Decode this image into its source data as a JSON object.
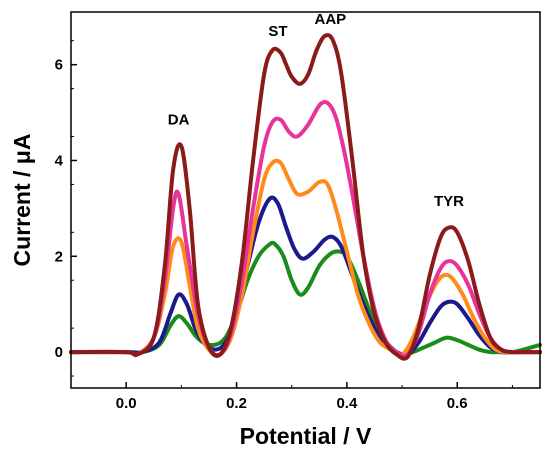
{
  "chart_data": {
    "type": "line",
    "title": "",
    "xlabel": "Potential / V",
    "ylabel": "Current / μA",
    "xlim": [
      -0.1,
      0.75
    ],
    "ylim": [
      -0.75,
      7.1
    ],
    "xticks": [
      "0.0",
      "0.2",
      "0.4",
      "0.6"
    ],
    "xtick_values": [
      0.0,
      0.2,
      0.4,
      0.6
    ],
    "yticks": [
      "0",
      "2",
      "4",
      "6"
    ],
    "ytick_values": [
      0,
      2,
      4,
      6
    ],
    "grid": false,
    "legend": "none",
    "annotations": [
      {
        "text": "DA",
        "x": 0.095,
        "y": 4.75
      },
      {
        "text": "ST",
        "x": 0.275,
        "y": 6.6
      },
      {
        "text": "AAP",
        "x": 0.37,
        "y": 6.85
      },
      {
        "text": "TYR",
        "x": 0.585,
        "y": 3.05
      }
    ],
    "series": [
      {
        "color": "#8B1A1A",
        "x": [
          -0.1,
          0.0,
          0.02,
          0.05,
          0.07,
          0.085,
          0.1,
          0.115,
          0.13,
          0.15,
          0.17,
          0.19,
          0.21,
          0.23,
          0.25,
          0.265,
          0.28,
          0.29,
          0.3,
          0.315,
          0.33,
          0.345,
          0.36,
          0.375,
          0.39,
          0.41,
          0.43,
          0.45,
          0.47,
          0.49,
          0.51,
          0.53,
          0.55,
          0.57,
          0.585,
          0.6,
          0.62,
          0.64,
          0.66,
          0.68,
          0.7,
          0.72,
          0.75
        ],
        "y": [
          0.0,
          0.0,
          -0.05,
          0.3,
          1.8,
          3.8,
          4.3,
          3.0,
          1.0,
          0.1,
          -0.05,
          0.5,
          1.9,
          4.0,
          5.8,
          6.3,
          6.25,
          6.0,
          5.75,
          5.6,
          5.8,
          6.3,
          6.6,
          6.5,
          5.8,
          4.0,
          2.0,
          0.8,
          0.2,
          -0.05,
          -0.1,
          0.5,
          1.6,
          2.4,
          2.6,
          2.5,
          1.9,
          1.0,
          0.3,
          0.05,
          0.0,
          0.0,
          0.0
        ]
      },
      {
        "color": "#E8339A",
        "x": [
          -0.1,
          0.0,
          0.02,
          0.05,
          0.07,
          0.085,
          0.095,
          0.11,
          0.13,
          0.15,
          0.17,
          0.19,
          0.21,
          0.23,
          0.25,
          0.265,
          0.28,
          0.295,
          0.31,
          0.33,
          0.35,
          0.365,
          0.38,
          0.395,
          0.41,
          0.43,
          0.45,
          0.47,
          0.49,
          0.51,
          0.53,
          0.55,
          0.57,
          0.585,
          0.6,
          0.62,
          0.64,
          0.66,
          0.68,
          0.7,
          0.72,
          0.75
        ],
        "y": [
          0.0,
          0.0,
          -0.05,
          0.3,
          1.5,
          3.0,
          3.3,
          2.2,
          0.8,
          0.1,
          -0.05,
          0.4,
          1.5,
          3.0,
          4.3,
          4.8,
          4.85,
          4.6,
          4.5,
          4.75,
          5.15,
          5.2,
          4.9,
          4.2,
          3.3,
          2.0,
          0.9,
          0.25,
          0.0,
          -0.05,
          0.4,
          1.2,
          1.75,
          1.9,
          1.8,
          1.4,
          0.8,
          0.3,
          0.05,
          0.0,
          0.0,
          0.0
        ]
      },
      {
        "color": "#FF8C1A",
        "x": [
          -0.1,
          0.0,
          0.02,
          0.05,
          0.07,
          0.085,
          0.1,
          0.115,
          0.13,
          0.15,
          0.17,
          0.19,
          0.21,
          0.23,
          0.25,
          0.265,
          0.28,
          0.295,
          0.31,
          0.33,
          0.35,
          0.365,
          0.38,
          0.4,
          0.42,
          0.44,
          0.46,
          0.48,
          0.5,
          0.52,
          0.54,
          0.56,
          0.575,
          0.59,
          0.61,
          0.63,
          0.65,
          0.67,
          0.69,
          0.72,
          0.75
        ],
        "y": [
          0.0,
          0.0,
          -0.05,
          0.3,
          1.2,
          2.2,
          2.3,
          1.4,
          0.5,
          0.05,
          -0.05,
          0.3,
          1.2,
          2.5,
          3.6,
          3.95,
          3.95,
          3.6,
          3.3,
          3.35,
          3.55,
          3.5,
          3.0,
          2.1,
          1.2,
          0.6,
          0.2,
          0.05,
          -0.05,
          0.3,
          0.9,
          1.4,
          1.6,
          1.55,
          1.2,
          0.7,
          0.3,
          0.05,
          0.0,
          0.0,
          0.0
        ]
      },
      {
        "color": "#1A1A8C",
        "x": [
          -0.1,
          0.0,
          0.03,
          0.06,
          0.08,
          0.095,
          0.11,
          0.125,
          0.14,
          0.16,
          0.18,
          0.2,
          0.22,
          0.24,
          0.26,
          0.275,
          0.29,
          0.305,
          0.32,
          0.34,
          0.36,
          0.375,
          0.39,
          0.41,
          0.43,
          0.45,
          0.47,
          0.49,
          0.51,
          0.53,
          0.55,
          0.57,
          0.585,
          0.6,
          0.62,
          0.64,
          0.66,
          0.68,
          0.7,
          0.72,
          0.75
        ],
        "y": [
          0.0,
          0.0,
          0.0,
          0.2,
          0.8,
          1.2,
          1.0,
          0.5,
          0.2,
          0.05,
          0.2,
          0.8,
          1.8,
          2.7,
          3.2,
          3.1,
          2.6,
          2.15,
          1.95,
          2.1,
          2.35,
          2.4,
          2.2,
          1.6,
          1.0,
          0.5,
          0.15,
          0.0,
          -0.05,
          0.2,
          0.6,
          0.95,
          1.05,
          1.0,
          0.7,
          0.35,
          0.1,
          0.0,
          0.0,
          0.0,
          0.0
        ]
      },
      {
        "color": "#1A8C1A",
        "x": [
          -0.1,
          0.0,
          0.03,
          0.06,
          0.08,
          0.095,
          0.11,
          0.125,
          0.14,
          0.16,
          0.18,
          0.2,
          0.22,
          0.24,
          0.26,
          0.27,
          0.285,
          0.3,
          0.315,
          0.33,
          0.35,
          0.37,
          0.385,
          0.4,
          0.42,
          0.44,
          0.46,
          0.48,
          0.5,
          0.52,
          0.54,
          0.56,
          0.58,
          0.6,
          0.62,
          0.64,
          0.66,
          0.68,
          0.7,
          0.72,
          0.75
        ],
        "y": [
          0.0,
          0.0,
          0.0,
          0.15,
          0.55,
          0.75,
          0.6,
          0.35,
          0.2,
          0.15,
          0.3,
          0.8,
          1.5,
          2.0,
          2.25,
          2.25,
          2.0,
          1.5,
          1.2,
          1.35,
          1.8,
          2.05,
          2.1,
          2.0,
          1.5,
          0.9,
          0.4,
          0.1,
          -0.05,
          0.0,
          0.1,
          0.2,
          0.3,
          0.25,
          0.15,
          0.05,
          0.0,
          0.0,
          0.0,
          0.05,
          0.15
        ]
      }
    ]
  }
}
